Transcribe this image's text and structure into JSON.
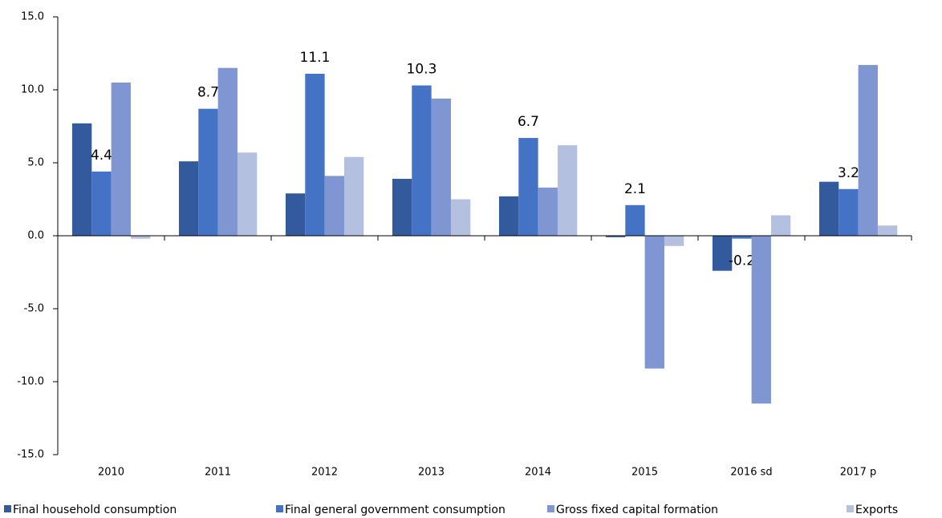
{
  "chart_data": {
    "type": "bar",
    "categories": [
      "2010",
      "2011",
      "2012",
      "2013",
      "2014",
      "2015",
      "2016 sd",
      "2017 p"
    ],
    "series": [
      {
        "name": "Final household consumption",
        "color": "#335a9c",
        "values": [
          7.7,
          5.1,
          2.9,
          3.9,
          2.7,
          -0.1,
          -2.4,
          3.7
        ]
      },
      {
        "name": "Final general government consumption",
        "color": "#4472c4",
        "values": [
          4.4,
          8.7,
          11.1,
          10.3,
          6.7,
          2.1,
          -0.2,
          3.2
        ],
        "data_labels": true
      },
      {
        "name": "Gross fixed capital formation",
        "color": "#7f96d2",
        "values": [
          10.5,
          11.5,
          4.1,
          9.4,
          3.3,
          -9.1,
          -11.5,
          11.7
        ]
      },
      {
        "name": "Exports",
        "color": "#b4c0e0",
        "values": [
          -0.2,
          5.7,
          5.4,
          2.5,
          6.2,
          -0.7,
          1.4,
          0.7
        ]
      }
    ],
    "ylim": [
      -15,
      15
    ],
    "yticks": [
      {
        "value": -15,
        "label": "-15.0"
      },
      {
        "value": -10,
        "label": "-10.0"
      },
      {
        "value": -5,
        "label": "-5.0"
      },
      {
        "value": 0,
        "label": "0.0"
      },
      {
        "value": 5,
        "label": "5.0"
      },
      {
        "value": 10,
        "label": "10.0"
      },
      {
        "value": 15,
        "label": "15.0"
      }
    ],
    "grid": false,
    "legend": "bottom"
  }
}
